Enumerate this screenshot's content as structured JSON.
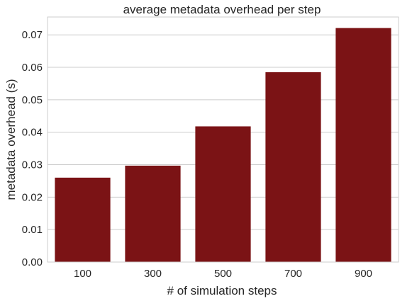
{
  "chart_data": {
    "type": "bar",
    "title": "average metadata overhead per step",
    "xlabel": "# of simulation steps",
    "ylabel": "metadata overhead (s)",
    "categories": [
      "100",
      "300",
      "500",
      "700",
      "900"
    ],
    "values": [
      0.026,
      0.0297,
      0.0418,
      0.0585,
      0.0721
    ],
    "ylim": [
      0,
      0.0755
    ],
    "yticks": [
      "0.00",
      "0.01",
      "0.02",
      "0.03",
      "0.04",
      "0.05",
      "0.06",
      "0.07"
    ],
    "grid": true,
    "bar_color": "#7b1315",
    "grid_color": "#cccccc"
  }
}
